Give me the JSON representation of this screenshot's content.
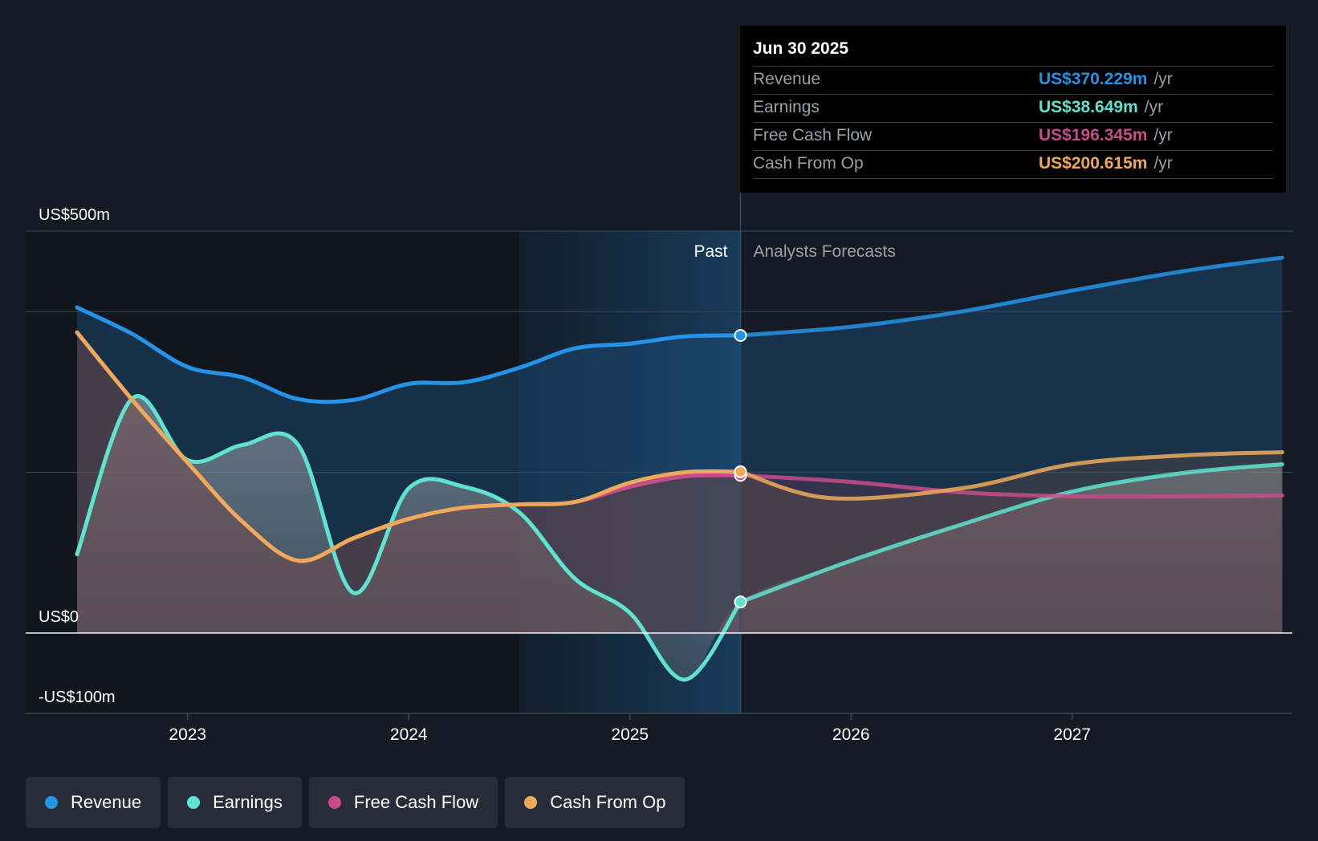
{
  "colors": {
    "revenue": "#2394e8",
    "earnings": "#5fe3d1",
    "fcf": "#c84c8a",
    "cfo": "#eeaa5a",
    "zero_line": "#ffffff",
    "grid": "#3a4250"
  },
  "tooltip": {
    "date": "Jun 30 2025",
    "rows": [
      {
        "label": "Revenue",
        "value": "US$370.229m",
        "unit": "/yr",
        "color": "#2394e8"
      },
      {
        "label": "Earnings",
        "value": "US$38.649m",
        "unit": "/yr",
        "color": "#5fe3d1"
      },
      {
        "label": "Free Cash Flow",
        "value": "US$196.345m",
        "unit": "/yr",
        "color": "#c84c8a"
      },
      {
        "label": "Cash From Op",
        "value": "US$200.615m",
        "unit": "/yr",
        "color": "#eeaa5a"
      }
    ]
  },
  "legend": [
    {
      "label": "Revenue",
      "color": "#2394e8"
    },
    {
      "label": "Earnings",
      "color": "#5fe3d1"
    },
    {
      "label": "Free Cash Flow",
      "color": "#c84c8a"
    },
    {
      "label": "Cash From Op",
      "color": "#eeaa5a"
    }
  ],
  "chart_data": {
    "type": "line",
    "title": "",
    "xlabel": "",
    "ylabel": "",
    "ylim": [
      -100,
      500
    ],
    "xlim": [
      2022.25,
      2027.95
    ],
    "y_ticks": [
      {
        "value": 500,
        "label": "US$500m"
      },
      {
        "value": 0,
        "label": "US$0"
      },
      {
        "value": -100,
        "label": "-US$100m"
      }
    ],
    "gridlines": [
      500,
      400,
      200,
      0,
      -100
    ],
    "x_ticks": [
      {
        "value": 2023,
        "label": "2023"
      },
      {
        "value": 2024,
        "label": "2024"
      },
      {
        "value": 2025,
        "label": "2025"
      },
      {
        "value": 2026,
        "label": "2026"
      },
      {
        "value": 2027,
        "label": "2027"
      }
    ],
    "past_label": "Past",
    "forecast_label": "Analysts Forecasts",
    "divider_x": 2025.5,
    "highlight_start_x": 2024.5,
    "series": [
      {
        "name": "Revenue",
        "key": "revenue",
        "color": "#2394e8",
        "past": [
          [
            2022.5,
            405
          ],
          [
            2022.75,
            372
          ],
          [
            2023.0,
            331
          ],
          [
            2023.25,
            318
          ],
          [
            2023.5,
            291
          ],
          [
            2023.75,
            290
          ],
          [
            2024.0,
            310
          ],
          [
            2024.25,
            312
          ],
          [
            2024.5,
            330
          ],
          [
            2024.75,
            354
          ],
          [
            2025.0,
            360
          ],
          [
            2025.25,
            369
          ],
          [
            2025.5,
            370.2
          ]
        ],
        "forecast": [
          [
            2025.5,
            370.2
          ],
          [
            2026.0,
            381
          ],
          [
            2026.5,
            400
          ],
          [
            2027.0,
            426
          ],
          [
            2027.5,
            450
          ],
          [
            2027.95,
            467
          ]
        ]
      },
      {
        "name": "Earnings",
        "key": "earnings",
        "color": "#5fe3d1",
        "past": [
          [
            2022.5,
            98
          ],
          [
            2022.75,
            292
          ],
          [
            2023.0,
            215
          ],
          [
            2023.25,
            234
          ],
          [
            2023.5,
            234
          ],
          [
            2023.75,
            50
          ],
          [
            2024.0,
            180
          ],
          [
            2024.25,
            182
          ],
          [
            2024.5,
            150
          ],
          [
            2024.75,
            68
          ],
          [
            2025.0,
            25
          ],
          [
            2025.25,
            -58
          ],
          [
            2025.5,
            38.6
          ]
        ],
        "forecast": [
          [
            2025.5,
            38.6
          ],
          [
            2026.0,
            90
          ],
          [
            2026.5,
            135
          ],
          [
            2027.0,
            176
          ],
          [
            2027.5,
            199
          ],
          [
            2027.95,
            210
          ]
        ]
      },
      {
        "name": "Free Cash Flow",
        "key": "fcf",
        "color": "#c84c8a",
        "past": [
          [
            2022.5,
            374
          ],
          [
            2022.75,
            290
          ],
          [
            2023.0,
            212
          ],
          [
            2023.25,
            138
          ],
          [
            2023.5,
            90
          ],
          [
            2023.75,
            118
          ],
          [
            2024.0,
            142
          ],
          [
            2024.25,
            156
          ],
          [
            2024.5,
            160
          ],
          [
            2024.75,
            163
          ],
          [
            2025.0,
            182
          ],
          [
            2025.25,
            195
          ],
          [
            2025.5,
            196.3
          ]
        ],
        "forecast": [
          [
            2025.5,
            196.3
          ],
          [
            2026.0,
            188
          ],
          [
            2026.5,
            175
          ],
          [
            2027.0,
            170
          ],
          [
            2027.5,
            170
          ],
          [
            2027.95,
            171
          ]
        ]
      },
      {
        "name": "Cash From Op",
        "key": "cfo",
        "color": "#eeaa5a",
        "past": [
          [
            2022.5,
            374
          ],
          [
            2022.75,
            290
          ],
          [
            2023.0,
            212
          ],
          [
            2023.25,
            138
          ],
          [
            2023.5,
            90
          ],
          [
            2023.75,
            118
          ],
          [
            2024.0,
            142
          ],
          [
            2024.25,
            156
          ],
          [
            2024.5,
            160
          ],
          [
            2024.75,
            163
          ],
          [
            2025.0,
            187
          ],
          [
            2025.25,
            200
          ],
          [
            2025.5,
            200.6
          ]
        ],
        "forecast": [
          [
            2025.5,
            200.6
          ],
          [
            2025.9,
            168
          ],
          [
            2026.5,
            180
          ],
          [
            2027.0,
            210
          ],
          [
            2027.5,
            221
          ],
          [
            2027.95,
            225
          ]
        ]
      }
    ]
  }
}
